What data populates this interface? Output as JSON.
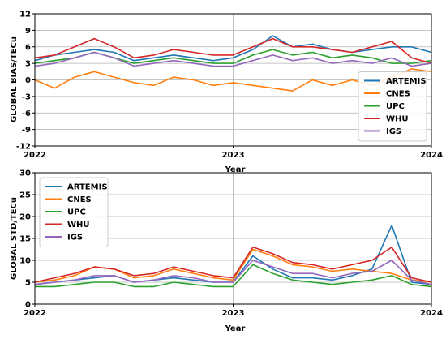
{
  "colors": {
    "ARTEMIS": "#1f77b4",
    "CNES": "#ff7f0e",
    "UPC": "#2ca02c",
    "WHU": "#d62728",
    "IGS": "#9467bd"
  },
  "chart_data": [
    {
      "type": "line",
      "xlabel": "Year",
      "ylabel": "GLOBAL BIAS/TECu",
      "xlim": [
        2022,
        2024
      ],
      "ylim": [
        -12,
        12
      ],
      "xticks": [
        "2022",
        "2023",
        "2024"
      ],
      "yticks": [
        "-12",
        "-9",
        "-6",
        "-3",
        "0",
        "3",
        "6",
        "9",
        "12"
      ],
      "grid": true,
      "legend": "lower-right",
      "series": [
        {
          "name": "ARTEMIS",
          "x": [
            2022.0,
            2022.1,
            2022.2,
            2022.3,
            2022.4,
            2022.5,
            2022.6,
            2022.7,
            2022.8,
            2022.9,
            2023.0,
            2023.1,
            2023.2,
            2023.3,
            2023.4,
            2023.5,
            2023.6,
            2023.7,
            2023.8,
            2023.9,
            2024.0
          ],
          "y": [
            3.5,
            4.5,
            5.0,
            5.5,
            5.0,
            3.5,
            4.0,
            4.5,
            4.0,
            3.5,
            4.0,
            5.5,
            8.0,
            6.0,
            6.5,
            5.5,
            5.0,
            5.5,
            6.0,
            6.0,
            5.0
          ]
        },
        {
          "name": "CNES",
          "x": [
            2022.0,
            2022.1,
            2022.2,
            2022.3,
            2022.4,
            2022.5,
            2022.6,
            2022.7,
            2022.8,
            2022.9,
            2023.0,
            2023.1,
            2023.2,
            2023.3,
            2023.4,
            2023.5,
            2023.6,
            2023.7,
            2023.8,
            2023.9,
            2024.0
          ],
          "y": [
            0.0,
            -1.5,
            0.5,
            1.5,
            0.5,
            -0.5,
            -1.0,
            0.5,
            0.0,
            -1.0,
            -0.5,
            -1.0,
            -1.5,
            -2.0,
            0.0,
            -1.0,
            0.0,
            -1.0,
            0.5,
            2.0,
            1.5
          ]
        },
        {
          "name": "UPC",
          "x": [
            2022.0,
            2022.1,
            2022.2,
            2022.3,
            2022.4,
            2022.5,
            2022.6,
            2022.7,
            2022.8,
            2022.9,
            2023.0,
            2023.1,
            2023.2,
            2023.3,
            2023.4,
            2023.5,
            2023.6,
            2023.7,
            2023.8,
            2023.9,
            2024.0
          ],
          "y": [
            3.0,
            3.5,
            4.0,
            5.0,
            4.0,
            3.0,
            3.5,
            4.0,
            3.5,
            3.0,
            3.0,
            4.5,
            5.5,
            4.5,
            5.0,
            4.0,
            4.5,
            4.0,
            3.0,
            3.0,
            3.5
          ]
        },
        {
          "name": "WHU",
          "x": [
            2022.0,
            2022.1,
            2022.2,
            2022.3,
            2022.4,
            2022.5,
            2022.6,
            2022.7,
            2022.8,
            2022.9,
            2023.0,
            2023.1,
            2023.2,
            2023.3,
            2023.4,
            2023.5,
            2023.6,
            2023.7,
            2023.8,
            2023.9,
            2024.0
          ],
          "y": [
            4.0,
            4.5,
            6.0,
            7.5,
            6.0,
            4.0,
            4.5,
            5.5,
            5.0,
            4.5,
            4.5,
            6.0,
            7.5,
            6.0,
            6.0,
            5.5,
            5.0,
            6.0,
            7.0,
            4.0,
            3.0
          ]
        },
        {
          "name": "IGS",
          "x": [
            2022.0,
            2022.1,
            2022.2,
            2022.3,
            2022.4,
            2022.5,
            2022.6,
            2022.7,
            2022.8,
            2022.9,
            2023.0,
            2023.1,
            2023.2,
            2023.3,
            2023.4,
            2023.5,
            2023.6,
            2023.7,
            2023.8,
            2023.9,
            2024.0
          ],
          "y": [
            2.5,
            3.0,
            4.0,
            5.0,
            4.0,
            2.5,
            3.0,
            3.5,
            3.0,
            2.5,
            2.5,
            3.5,
            4.5,
            3.5,
            4.0,
            3.0,
            3.5,
            3.0,
            4.0,
            2.5,
            3.0
          ]
        }
      ]
    },
    {
      "type": "line",
      "xlabel": "Year",
      "ylabel": "GLOBAL STD/TECu",
      "xlim": [
        2022,
        2024
      ],
      "ylim": [
        0,
        30
      ],
      "xticks": [
        "2022",
        "2023",
        "2024"
      ],
      "yticks": [
        "0",
        "5",
        "10",
        "15",
        "20",
        "25",
        "30"
      ],
      "grid": true,
      "legend": "upper-left",
      "series": [
        {
          "name": "ARTEMIS",
          "x": [
            2022.0,
            2022.1,
            2022.2,
            2022.3,
            2022.4,
            2022.5,
            2022.6,
            2022.7,
            2022.8,
            2022.9,
            2023.0,
            2023.1,
            2023.2,
            2023.3,
            2023.4,
            2023.5,
            2023.6,
            2023.7,
            2023.8,
            2023.9,
            2024.0
          ],
          "y": [
            4.5,
            5.0,
            5.5,
            6.0,
            6.5,
            5.0,
            5.5,
            6.0,
            5.5,
            5.0,
            5.0,
            11.0,
            8.0,
            6.0,
            6.0,
            5.5,
            6.5,
            8.0,
            18.0,
            5.0,
            4.5
          ]
        },
        {
          "name": "CNES",
          "x": [
            2022.0,
            2022.1,
            2022.2,
            2022.3,
            2022.4,
            2022.5,
            2022.6,
            2022.7,
            2022.8,
            2022.9,
            2023.0,
            2023.1,
            2023.2,
            2023.3,
            2023.4,
            2023.5,
            2023.6,
            2023.7,
            2023.8,
            2023.9,
            2024.0
          ],
          "y": [
            5.0,
            5.5,
            6.5,
            8.5,
            8.0,
            6.0,
            6.5,
            8.0,
            7.0,
            6.0,
            5.5,
            12.5,
            11.0,
            9.0,
            8.5,
            7.5,
            8.0,
            7.5,
            7.0,
            5.5,
            5.0
          ]
        },
        {
          "name": "UPC",
          "x": [
            2022.0,
            2022.1,
            2022.2,
            2022.3,
            2022.4,
            2022.5,
            2022.6,
            2022.7,
            2022.8,
            2022.9,
            2023.0,
            2023.1,
            2023.2,
            2023.3,
            2023.4,
            2023.5,
            2023.6,
            2023.7,
            2023.8,
            2023.9,
            2024.0
          ],
          "y": [
            4.0,
            4.0,
            4.5,
            5.0,
            5.0,
            4.0,
            4.0,
            5.0,
            4.5,
            4.0,
            4.0,
            9.0,
            7.0,
            5.5,
            5.0,
            4.5,
            5.0,
            5.5,
            6.5,
            4.5,
            4.0
          ]
        },
        {
          "name": "WHU",
          "x": [
            2022.0,
            2022.1,
            2022.2,
            2022.3,
            2022.4,
            2022.5,
            2022.6,
            2022.7,
            2022.8,
            2022.9,
            2023.0,
            2023.1,
            2023.2,
            2023.3,
            2023.4,
            2023.5,
            2023.6,
            2023.7,
            2023.8,
            2023.9,
            2024.0
          ],
          "y": [
            5.0,
            6.0,
            7.0,
            8.5,
            8.0,
            6.5,
            7.0,
            8.5,
            7.5,
            6.5,
            6.0,
            13.0,
            11.5,
            9.5,
            9.0,
            8.0,
            9.0,
            10.0,
            13.0,
            6.0,
            5.0
          ]
        },
        {
          "name": "IGS",
          "x": [
            2022.0,
            2022.1,
            2022.2,
            2022.3,
            2022.4,
            2022.5,
            2022.6,
            2022.7,
            2022.8,
            2022.9,
            2023.0,
            2023.1,
            2023.2,
            2023.3,
            2023.4,
            2023.5,
            2023.6,
            2023.7,
            2023.8,
            2023.9,
            2024.0
          ],
          "y": [
            4.5,
            5.0,
            5.5,
            6.5,
            6.5,
            5.0,
            5.5,
            6.5,
            6.0,
            5.0,
            5.0,
            10.0,
            8.5,
            7.0,
            7.0,
            6.0,
            7.0,
            7.5,
            10.0,
            5.5,
            4.5
          ]
        }
      ]
    }
  ]
}
